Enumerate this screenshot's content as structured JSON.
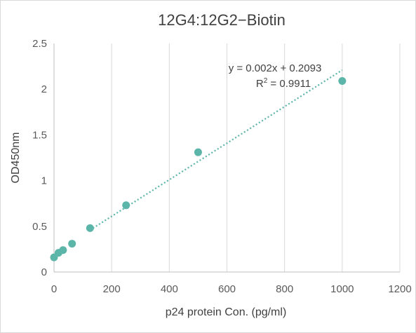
{
  "chart_data": {
    "type": "scatter",
    "title": "12G4:12G2−Biotin",
    "xlabel": "p24 protein Con. (pg/ml)",
    "ylabel": "OD450nm",
    "xlim": [
      0,
      1200
    ],
    "ylim": [
      0,
      2.5
    ],
    "xticks": [
      0,
      200,
      400,
      600,
      800,
      1000,
      1200
    ],
    "yticks": [
      0,
      0.5,
      1,
      1.5,
      2,
      2.5
    ],
    "xtick_labels": [
      "0",
      "200",
      "400",
      "600",
      "800",
      "1000",
      "1200"
    ],
    "ytick_labels": [
      "0",
      "0.5",
      "1",
      "1.5",
      "2",
      "2.5"
    ],
    "grid": "vertical",
    "series": [
      {
        "x": [
          0,
          15.6,
          31.25,
          62.5,
          125,
          250,
          500,
          1000
        ],
        "y": [
          0.16,
          0.21,
          0.24,
          0.31,
          0.48,
          0.73,
          1.31,
          2.09
        ]
      }
    ],
    "trendline": {
      "slope": 0.002,
      "intercept": 0.2093,
      "x_range": [
        125,
        1000
      ]
    },
    "equation_text": "y = 0.002x + 0.2093",
    "r2_prefix": "R",
    "r2_sup": "2",
    "r2_value": " = 0.9911",
    "colors": {
      "marker": "#5bb5a8",
      "grid": "#d9d9d9",
      "axis": "#bfbfbf"
    }
  }
}
